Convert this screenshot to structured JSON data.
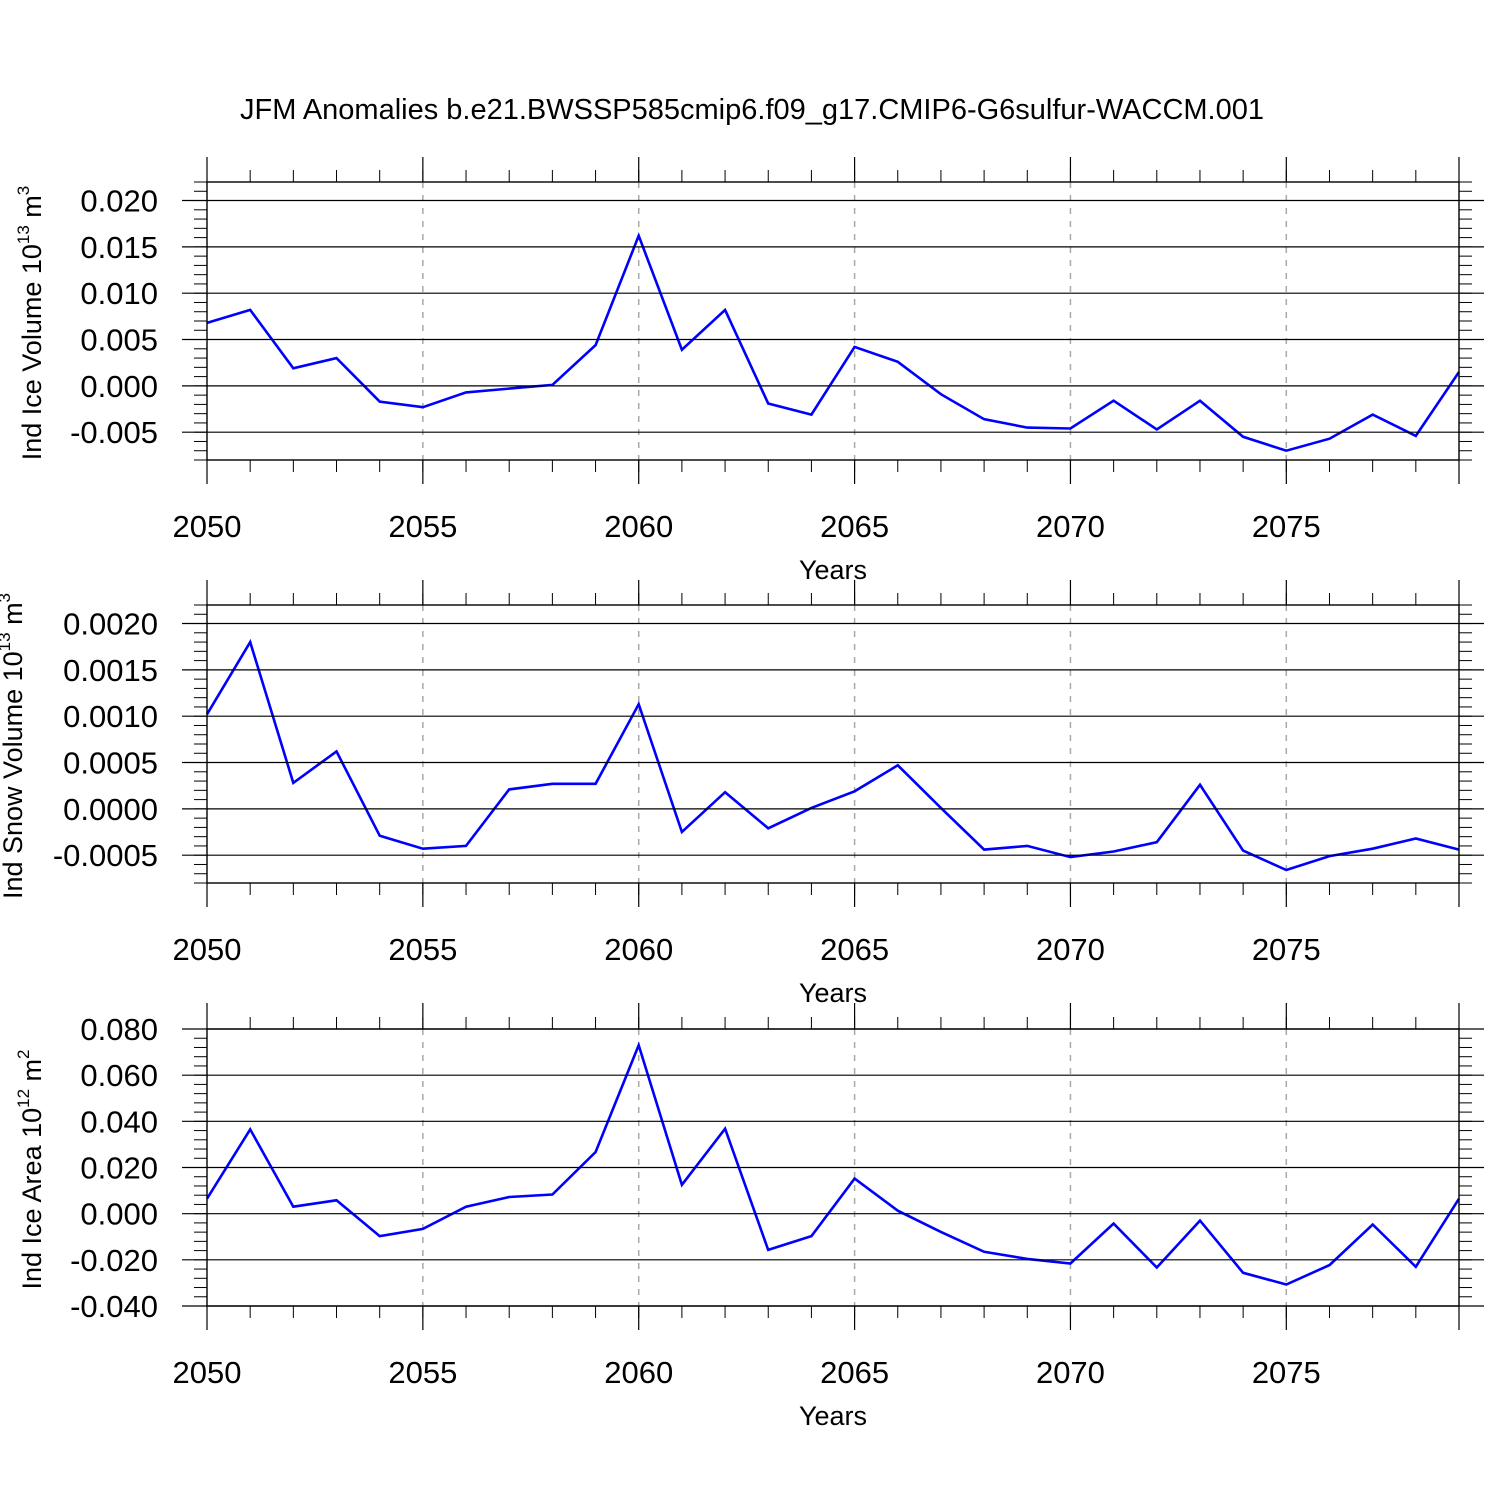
{
  "title": "JFM Anomalies b.e21.BWSSP585cmip6.f09_g17.CMIP6-G6sulfur-WACCM.001",
  "chart_data": [
    {
      "type": "line",
      "xlabel": "Years",
      "ylabel_parts": [
        "Ind Ice Volume 10",
        "13",
        " m",
        "3"
      ],
      "xlim": [
        2050,
        2079
      ],
      "ylim": [
        -0.008,
        0.022
      ],
      "x_ticks": [
        "2050",
        "2055",
        "2060",
        "2065",
        "2070",
        "2075"
      ],
      "y_ticks": [
        "0.020",
        "0.015",
        "0.010",
        "0.005",
        "0.000",
        "-0.005"
      ],
      "y_tick_values": [
        0.02,
        0.015,
        0.01,
        0.005,
        0.0,
        -0.005
      ],
      "grid_x": "dashed at major ticks",
      "line_color": "#0000ff",
      "x": [
        2050,
        2051,
        2052,
        2053,
        2054,
        2055,
        2056,
        2057,
        2058,
        2059,
        2060,
        2061,
        2062,
        2063,
        2064,
        2065,
        2066,
        2067,
        2068,
        2069,
        2070,
        2071,
        2072,
        2073,
        2074,
        2075,
        2076,
        2077,
        2078,
        2079
      ],
      "values": [
        0.0068,
        0.0082,
        0.0019,
        0.003,
        -0.0017,
        -0.0023,
        -0.0007,
        -0.0003,
        0.0001,
        0.0044,
        0.0162,
        0.0039,
        0.0082,
        -0.0019,
        -0.0031,
        0.0042,
        0.0026,
        -0.0009,
        -0.0036,
        -0.0045,
        -0.0046,
        -0.0016,
        -0.0047,
        -0.0016,
        -0.0055,
        -0.007,
        -0.0057,
        -0.0031,
        -0.0054,
        0.0015
      ]
    },
    {
      "type": "line",
      "xlabel": "Years",
      "ylabel_parts": [
        "Ind Snow Volume 10",
        "13",
        " m",
        "3"
      ],
      "xlim": [
        2050,
        2079
      ],
      "ylim": [
        -0.0008,
        0.0022
      ],
      "x_ticks": [
        "2050",
        "2055",
        "2060",
        "2065",
        "2070",
        "2075"
      ],
      "y_ticks": [
        "0.0020",
        "0.0015",
        "0.0010",
        "0.0005",
        "0.0000",
        "-0.0005"
      ],
      "y_tick_values": [
        0.002,
        0.0015,
        0.001,
        0.0005,
        0.0,
        -0.0005
      ],
      "grid_x": "dashed at major ticks",
      "line_color": "#0000ff",
      "x": [
        2050,
        2051,
        2052,
        2053,
        2054,
        2055,
        2056,
        2057,
        2058,
        2059,
        2060,
        2061,
        2062,
        2063,
        2064,
        2065,
        2066,
        2067,
        2068,
        2069,
        2070,
        2071,
        2072,
        2073,
        2074,
        2075,
        2076,
        2077,
        2078,
        2079
      ],
      "values": [
        0.00102,
        0.0018,
        0.00028,
        0.00062,
        -0.00029,
        -0.00043,
        -0.0004,
        0.00021,
        0.00027,
        0.00027,
        0.00113,
        -0.00025,
        0.00018,
        -0.00021,
        1e-05,
        0.00019,
        0.00047,
        1e-05,
        -0.00044,
        -0.0004,
        -0.00052,
        -0.00046,
        -0.00036,
        0.00026,
        -0.00045,
        -0.00066,
        -0.00051,
        -0.00043,
        -0.00032,
        -0.00044
      ]
    },
    {
      "type": "line",
      "xlabel": "Years",
      "ylabel_parts": [
        "Ind Ice Area 10",
        "12",
        " m",
        "2"
      ],
      "xlim": [
        2050,
        2079
      ],
      "ylim": [
        -0.04,
        0.08
      ],
      "x_ticks": [
        "2050",
        "2055",
        "2060",
        "2065",
        "2070",
        "2075"
      ],
      "y_ticks": [
        "0.080",
        "0.060",
        "0.040",
        "0.020",
        "0.000",
        "-0.020",
        "-0.040"
      ],
      "y_tick_values": [
        0.08,
        0.06,
        0.04,
        0.02,
        0.0,
        -0.02,
        -0.04
      ],
      "grid_x": "dashed at major ticks",
      "line_color": "#0000ff",
      "x": [
        2050,
        2051,
        2052,
        2053,
        2054,
        2055,
        2056,
        2057,
        2058,
        2059,
        2060,
        2061,
        2062,
        2063,
        2064,
        2065,
        2066,
        2067,
        2068,
        2069,
        2070,
        2071,
        2072,
        2073,
        2074,
        2075,
        2076,
        2077,
        2078,
        2079
      ],
      "values": [
        0.0065,
        0.0365,
        0.003,
        0.0058,
        -0.0097,
        -0.0066,
        0.003,
        0.0072,
        0.0083,
        0.0267,
        0.073,
        0.0125,
        0.0368,
        -0.0157,
        -0.0097,
        0.0152,
        0.0013,
        -0.0079,
        -0.0165,
        -0.0196,
        -0.0216,
        -0.0043,
        -0.0233,
        -0.003,
        -0.0256,
        -0.0307,
        -0.0223,
        -0.0047,
        -0.023,
        0.0065
      ]
    }
  ]
}
